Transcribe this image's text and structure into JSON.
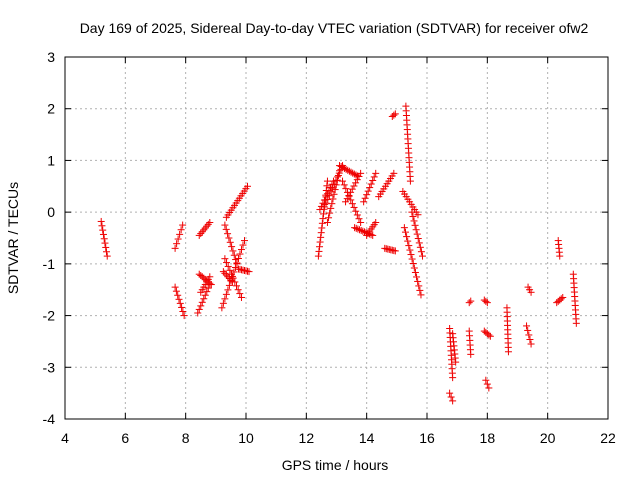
{
  "chart_data": {
    "type": "scatter",
    "title": "Day 169 of 2025, Sidereal Day-to-day VTEC variation (SDTVAR) for receiver ofw2",
    "xlabel": "GPS time / hours",
    "ylabel": "SDTVAR / TECUs",
    "xlim": [
      4,
      22
    ],
    "ylim": [
      -4,
      3
    ],
    "xticks": [
      "4",
      "6",
      "8",
      "10",
      "12",
      "14",
      "16",
      "18",
      "20",
      "22"
    ],
    "yticks": [
      "-4",
      "-3",
      "-2",
      "-1",
      "0",
      "1",
      "2",
      "3"
    ],
    "grid": true,
    "marker": "+",
    "color": "#ee0000",
    "segments": [
      [
        5.2,
        -0.18,
        5.4,
        -0.85
      ],
      [
        7.65,
        -0.7,
        7.9,
        -0.25
      ],
      [
        7.65,
        -1.45,
        7.95,
        -2.0
      ],
      [
        8.4,
        -1.95,
        8.8,
        -1.4
      ],
      [
        8.45,
        -1.2,
        8.85,
        -1.4
      ],
      [
        8.45,
        -0.45,
        8.8,
        -0.2
      ],
      [
        8.5,
        -1.55,
        8.8,
        -1.25
      ],
      [
        9.2,
        -1.85,
        9.95,
        -0.55
      ],
      [
        9.25,
        -1.15,
        9.55,
        -1.35
      ],
      [
        9.3,
        -0.9,
        9.85,
        -1.65
      ],
      [
        9.35,
        -0.1,
        10.05,
        0.5
      ],
      [
        9.3,
        -0.25,
        9.7,
        -1.0
      ],
      [
        9.75,
        -1.1,
        10.1,
        -1.15
      ],
      [
        12.4,
        -0.85,
        12.7,
        0.6
      ],
      [
        12.45,
        0.05,
        12.9,
        0.6
      ],
      [
        12.6,
        0.1,
        13.2,
        0.9
      ],
      [
        12.7,
        -0.2,
        13.1,
        0.8
      ],
      [
        13.1,
        0.9,
        13.7,
        0.7
      ],
      [
        13.2,
        0.6,
        13.8,
        -0.2
      ],
      [
        13.3,
        0.2,
        13.8,
        0.75
      ],
      [
        13.6,
        -0.3,
        14.2,
        -0.45
      ],
      [
        13.9,
        0.2,
        14.3,
        0.75
      ],
      [
        14.0,
        -0.45,
        14.3,
        -0.2
      ],
      [
        14.4,
        0.3,
        14.9,
        0.75
      ],
      [
        14.6,
        -0.7,
        14.95,
        -0.75
      ],
      [
        14.85,
        1.85,
        14.95,
        1.9
      ],
      [
        15.3,
        2.05,
        15.45,
        0.6
      ],
      [
        15.2,
        0.4,
        15.7,
        -0.05
      ],
      [
        15.25,
        -0.3,
        15.8,
        -1.6
      ],
      [
        15.5,
        0.0,
        15.85,
        -0.85
      ],
      [
        16.75,
        -2.25,
        16.85,
        -3.2
      ],
      [
        16.75,
        -3.5,
        16.85,
        -3.65
      ],
      [
        16.85,
        -2.35,
        16.95,
        -2.9
      ],
      [
        17.4,
        -1.75,
        17.45,
        -1.72
      ],
      [
        17.4,
        -2.3,
        17.45,
        -2.75
      ],
      [
        17.9,
        -1.7,
        18.0,
        -1.75
      ],
      [
        17.9,
        -2.3,
        18.1,
        -2.4
      ],
      [
        17.95,
        -3.25,
        18.05,
        -3.4
      ],
      [
        18.65,
        -1.85,
        18.7,
        -2.7
      ],
      [
        19.35,
        -1.45,
        19.45,
        -1.55
      ],
      [
        19.3,
        -2.2,
        19.45,
        -2.55
      ],
      [
        20.35,
        -0.55,
        20.4,
        -0.85
      ],
      [
        20.3,
        -1.75,
        20.5,
        -1.65
      ],
      [
        20.85,
        -1.2,
        20.95,
        -2.15
      ]
    ]
  }
}
